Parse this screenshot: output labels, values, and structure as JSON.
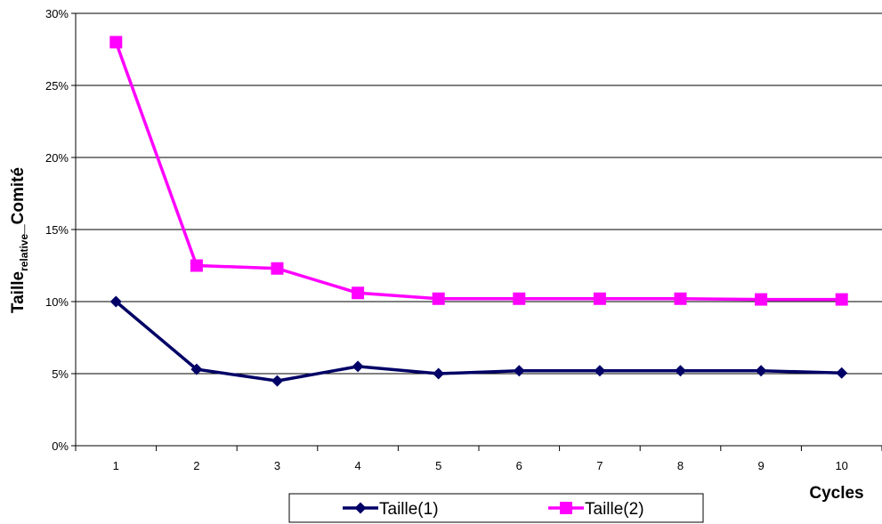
{
  "chart_data": {
    "type": "line",
    "xlabel": "Cycles",
    "ylabel": {
      "base": "Taille",
      "subscript": "relative",
      "suffix": "_Comité"
    },
    "categories": [
      "1",
      "2",
      "3",
      "4",
      "5",
      "6",
      "7",
      "8",
      "9",
      "10"
    ],
    "ylim": [
      0,
      30
    ],
    "yticks": [
      "0%",
      "5%",
      "10%",
      "15%",
      "20%",
      "25%",
      "30%"
    ],
    "grid": true,
    "legend": "bottom",
    "series": [
      {
        "name": "Taille(1)",
        "color": "#000066",
        "marker": "diamond",
        "values": [
          10.0,
          5.3,
          4.5,
          5.5,
          5.0,
          5.2,
          5.2,
          5.2,
          5.2,
          5.05
        ]
      },
      {
        "name": "Taille(2)",
        "color": "#ff00ff",
        "marker": "square",
        "values": [
          28.0,
          12.5,
          12.3,
          10.6,
          10.2,
          10.2,
          10.2,
          10.2,
          10.15,
          10.15
        ]
      }
    ]
  }
}
